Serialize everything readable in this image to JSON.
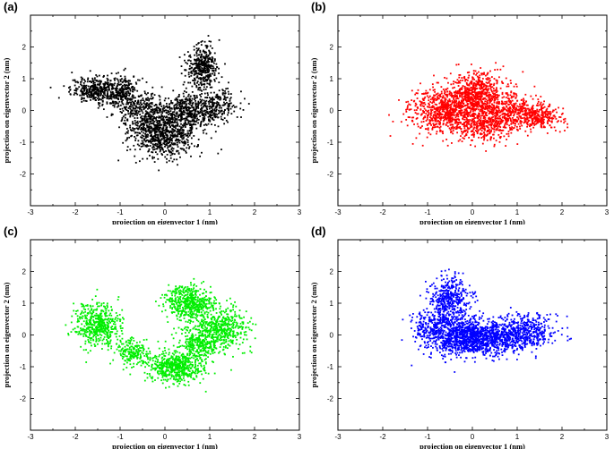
{
  "chart_data": [
    {
      "type": "scatter",
      "panel_label": "(a)",
      "color": "#000000",
      "xlabel": "projection on eigenvector 1 (nm)",
      "ylabel": "projection on eigenvector 2 (nm)",
      "xlim": [
        -3,
        3
      ],
      "ylim": [
        -3,
        3
      ],
      "xticks": [
        "-3",
        "-2",
        "-1",
        "0",
        "1",
        "2",
        "3"
      ],
      "yticks": [
        "-2",
        "-1",
        "0",
        "1",
        "2"
      ],
      "clusters": [
        {
          "x": -1.5,
          "y": 0.65,
          "sx": 0.3,
          "sy": 0.2,
          "n": 380
        },
        {
          "x": -0.95,
          "y": 0.55,
          "sx": 0.2,
          "sy": 0.3,
          "n": 220
        },
        {
          "x": -0.5,
          "y": -0.1,
          "sx": 0.25,
          "sy": 0.35,
          "n": 300
        },
        {
          "x": 0.0,
          "y": -0.75,
          "sx": 0.35,
          "sy": 0.35,
          "n": 700
        },
        {
          "x": 0.55,
          "y": 0.0,
          "sx": 0.35,
          "sy": 0.3,
          "n": 500
        },
        {
          "x": 0.85,
          "y": 1.35,
          "sx": 0.18,
          "sy": 0.35,
          "n": 400
        },
        {
          "x": 1.2,
          "y": 0.15,
          "sx": 0.2,
          "sy": 0.25,
          "n": 150
        }
      ]
    },
    {
      "type": "scatter",
      "panel_label": "(b)",
      "color": "#ff0000",
      "xlabel": "projection on eigenvector 1 (nm)",
      "ylabel": "projection on eigenvector 2 (nm)",
      "xlim": [
        -3,
        3
      ],
      "ylim": [
        -3,
        3
      ],
      "xticks": [
        "-3",
        "-2",
        "-1",
        "0",
        "1",
        "2",
        "3"
      ],
      "yticks": [
        "-2",
        "-1",
        "0",
        "1",
        "2"
      ],
      "clusters": [
        {
          "x": -0.7,
          "y": 0.0,
          "sx": 0.35,
          "sy": 0.35,
          "n": 650
        },
        {
          "x": 0.1,
          "y": 0.5,
          "sx": 0.3,
          "sy": 0.35,
          "n": 650
        },
        {
          "x": 0.2,
          "y": -0.35,
          "sx": 0.35,
          "sy": 0.3,
          "n": 500
        },
        {
          "x": 0.9,
          "y": 0.0,
          "sx": 0.3,
          "sy": 0.3,
          "n": 350
        },
        {
          "x": 1.5,
          "y": -0.2,
          "sx": 0.25,
          "sy": 0.2,
          "n": 250
        }
      ]
    },
    {
      "type": "scatter",
      "panel_label": "(c)",
      "color": "#00ee00",
      "xlabel": "projection on eigenvector 1 (nm)",
      "ylabel": "projection on eigenvector 2 (nm)",
      "xlim": [
        -3,
        3
      ],
      "ylim": [
        -3,
        3
      ],
      "xticks": [
        "-3",
        "-2",
        "-1",
        "0",
        "1",
        "2",
        "3"
      ],
      "yticks": [
        "-2",
        "-1",
        "0",
        "1",
        "2"
      ],
      "clusters": [
        {
          "x": -1.5,
          "y": 0.3,
          "sx": 0.25,
          "sy": 0.35,
          "n": 500
        },
        {
          "x": -0.75,
          "y": -0.55,
          "sx": 0.2,
          "sy": 0.2,
          "n": 200
        },
        {
          "x": 0.25,
          "y": -1.0,
          "sx": 0.3,
          "sy": 0.25,
          "n": 550
        },
        {
          "x": 0.55,
          "y": 1.0,
          "sx": 0.25,
          "sy": 0.28,
          "n": 500
        },
        {
          "x": 1.25,
          "y": 0.2,
          "sx": 0.3,
          "sy": 0.35,
          "n": 500
        },
        {
          "x": 0.75,
          "y": -0.3,
          "sx": 0.2,
          "sy": 0.25,
          "n": 250
        }
      ]
    },
    {
      "type": "scatter",
      "panel_label": "(d)",
      "color": "#0000ff",
      "xlabel": "projection on eigenvector 1 (nm)",
      "ylabel": "projection on eigenvector 2 (nm)",
      "xlim": [
        -3,
        3
      ],
      "ylim": [
        -3,
        3
      ],
      "xticks": [
        "-3",
        "-2",
        "-1",
        "0",
        "1",
        "2",
        "3"
      ],
      "yticks": [
        "-2",
        "-1",
        "0",
        "1",
        "2"
      ],
      "clusters": [
        {
          "x": -0.5,
          "y": 1.05,
          "sx": 0.22,
          "sy": 0.4,
          "n": 450
        },
        {
          "x": -0.3,
          "y": -0.05,
          "sx": 0.4,
          "sy": 0.3,
          "n": 900
        },
        {
          "x": 0.4,
          "y": -0.15,
          "sx": 0.35,
          "sy": 0.25,
          "n": 450
        },
        {
          "x": 1.15,
          "y": 0.1,
          "sx": 0.35,
          "sy": 0.25,
          "n": 500
        },
        {
          "x": -0.95,
          "y": 0.3,
          "sx": 0.2,
          "sy": 0.3,
          "n": 150
        }
      ]
    }
  ]
}
